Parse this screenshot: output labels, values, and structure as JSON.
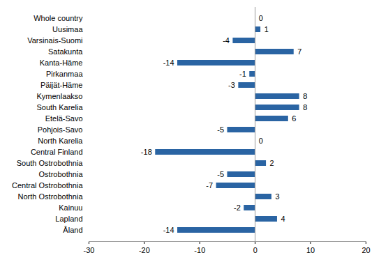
{
  "chart_data": {
    "type": "bar",
    "orientation": "horizontal",
    "categories": [
      "Whole country",
      "Uusimaa",
      "Varsinais-Suomi",
      "Satakunta",
      "Kanta-Häme",
      "Pirkanmaa",
      "Päijät-Häme",
      "Kymenlaakso",
      "South Karelia",
      "Etelä-Savo",
      "Pohjois-Savo",
      "North Karelia",
      "Central Finland",
      "South Ostrobothnia",
      "Ostrobothnia",
      "Central Ostrobothnia",
      "North Ostrobothnia",
      "Kainuu",
      "Lapland",
      "Åland"
    ],
    "values": [
      0,
      1,
      -4,
      7,
      -14,
      -1,
      -3,
      8,
      8,
      6,
      -5,
      0,
      -18,
      2,
      -5,
      -7,
      3,
      -2,
      4,
      -14
    ],
    "color": "#2a64a3",
    "xlim": [
      -30,
      20
    ],
    "xticks": [
      -30,
      -20,
      -10,
      0,
      10,
      20
    ],
    "grid": false,
    "data_labels": true
  }
}
